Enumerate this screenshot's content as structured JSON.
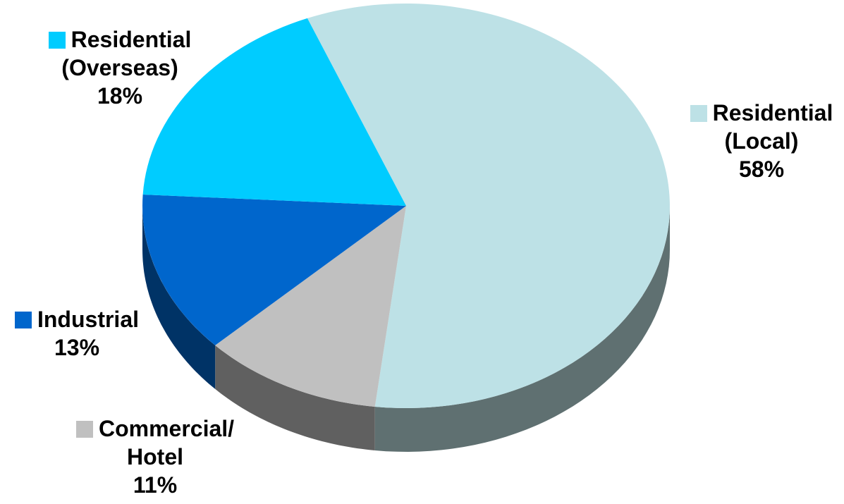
{
  "chart_data": {
    "type": "pie",
    "style": "3d",
    "slices": [
      {
        "name_lines": [
          "Residential",
          "(Local)"
        ],
        "value": 58,
        "value_label": "58%",
        "color": "#bde1e6",
        "side_color": "#5f7071"
      },
      {
        "name_lines": [
          "Commercial/",
          "Hotel"
        ],
        "value": 11,
        "value_label": "11%",
        "color": "#c0c0c0",
        "side_color": "#606060"
      },
      {
        "name_lines": [
          "Industrial"
        ],
        "value": 13,
        "value_label": "13%",
        "color": "#0066cc",
        "side_color": "#003366"
      },
      {
        "name_lines": [
          "Residential",
          "(Overseas)"
        ],
        "value": 18,
        "value_label": "18%",
        "color": "#00ccff",
        "side_color": "#007a99"
      }
    ],
    "title": "",
    "legend": "none"
  }
}
